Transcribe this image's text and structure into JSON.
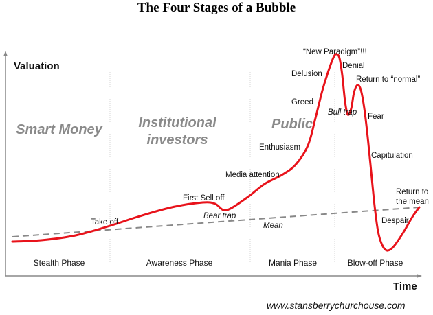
{
  "title": "The Four Stages of a Bubble",
  "axes": {
    "y_label": "Valuation",
    "x_label": "Time"
  },
  "groups": [
    "Smart Money",
    "Institutional",
    "investors",
    "Public"
  ],
  "phases": [
    "Stealth Phase",
    "Awareness Phase",
    "Mania Phase",
    "Blow-off Phase"
  ],
  "annotations": {
    "take_off": "Take off",
    "first_sell_off": "First Sell off",
    "bear_trap": "Bear trap",
    "media_attention": "Media attention",
    "enthusiasm": "Enthusiasm",
    "greed": "Greed",
    "delusion": "Delusion",
    "new_paradigm": "“New Paradigm”!!!",
    "denial": "Denial",
    "bull_trap": "Bull trap",
    "return_to_normal": "Return to “normal”",
    "fear": "Fear",
    "capitulation": "Capitulation",
    "despair": "Despair",
    "return_to_mean_1": "Return to",
    "return_to_mean_2": "the mean",
    "mean": "Mean"
  },
  "source": "www.stansberrychurchouse.com",
  "colors": {
    "curve": "#e8131b",
    "mean_line": "#888888",
    "group_text": "#8a8a8a",
    "divider": "#d0d0d0"
  }
}
